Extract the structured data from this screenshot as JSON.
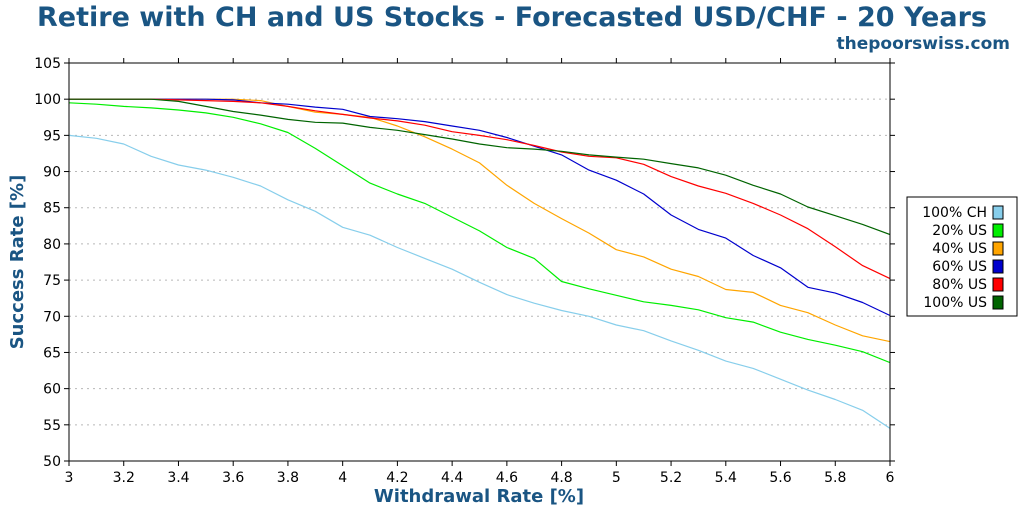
{
  "chart_data": {
    "type": "line",
    "title": "Retire with CH and US Stocks - Forecasted USD/CHF - 20 Years",
    "source": "thepoorswiss.com",
    "xlabel": "Withdrawal Rate [%]",
    "ylabel": "Success Rate [%]",
    "xlim": [
      3,
      6
    ],
    "ylim": [
      50,
      105
    ],
    "xticks": [
      "3",
      "3.2",
      "3.4",
      "3.6",
      "3.8",
      "4",
      "4.2",
      "4.4",
      "4.6",
      "4.8",
      "5",
      "5.2",
      "5.4",
      "5.6",
      "5.8",
      "6"
    ],
    "yticks": [
      "50",
      "55",
      "60",
      "65",
      "70",
      "75",
      "80",
      "85",
      "90",
      "95",
      "100",
      "105"
    ],
    "grid": true,
    "legend_position": "right",
    "x": [
      3.0,
      3.1,
      3.2,
      3.3,
      3.4,
      3.5,
      3.6,
      3.7,
      3.8,
      3.9,
      4.0,
      4.1,
      4.2,
      4.3,
      4.4,
      4.5,
      4.6,
      4.7,
      4.8,
      4.9,
      5.0,
      5.1,
      5.2,
      5.3,
      5.4,
      5.5,
      5.6,
      5.7,
      5.8,
      5.9,
      6.0
    ],
    "series": [
      {
        "name": "100% CH",
        "color": "#87ceeb",
        "values": [
          95.0,
          94.6,
          93.8,
          92.1,
          90.9,
          90.2,
          89.2,
          88.0,
          86.1,
          84.5,
          82.3,
          81.2,
          79.5,
          78.0,
          76.5,
          74.7,
          73.0,
          71.8,
          70.8,
          70.0,
          68.8,
          68.0,
          66.6,
          65.3,
          63.8,
          62.8,
          61.3,
          59.8,
          58.5,
          57.0,
          54.5
        ]
      },
      {
        "name": "20% US",
        "color": "#00ee00",
        "values": [
          99.5,
          99.3,
          99.0,
          98.8,
          98.5,
          98.1,
          97.5,
          96.6,
          95.4,
          93.2,
          90.8,
          88.4,
          86.9,
          85.6,
          83.7,
          81.8,
          79.5,
          78.0,
          74.8,
          73.8,
          72.9,
          72.0,
          71.5,
          70.9,
          69.8,
          69.2,
          67.8,
          66.8,
          66.0,
          65.1,
          63.6
        ]
      },
      {
        "name": "40% US",
        "color": "#ffa500",
        "values": [
          100.0,
          100.0,
          100.0,
          100.0,
          100.0,
          100.0,
          100.0,
          99.8,
          99.0,
          98.2,
          97.9,
          97.5,
          96.3,
          94.8,
          93.1,
          91.2,
          88.1,
          85.6,
          83.5,
          81.5,
          79.2,
          78.2,
          76.5,
          75.5,
          73.7,
          73.3,
          71.5,
          70.5,
          68.8,
          67.3,
          66.5
        ]
      },
      {
        "name": "60% US",
        "color": "#0000cd",
        "values": [
          100.0,
          100.0,
          100.0,
          100.0,
          100.0,
          100.0,
          99.9,
          99.5,
          99.3,
          98.9,
          98.6,
          97.6,
          97.3,
          96.9,
          96.3,
          95.7,
          94.7,
          93.5,
          92.3,
          90.2,
          88.8,
          86.9,
          84.0,
          82.0,
          80.8,
          78.4,
          76.7,
          74.0,
          73.2,
          71.9,
          70.1
        ]
      },
      {
        "name": "80% US",
        "color": "#ff0000",
        "values": [
          100.0,
          100.0,
          100.0,
          100.0,
          99.9,
          99.8,
          99.7,
          99.5,
          99.0,
          98.4,
          97.9,
          97.4,
          97.0,
          96.4,
          95.5,
          95.0,
          94.4,
          93.6,
          92.7,
          92.1,
          91.9,
          91.0,
          89.3,
          88.0,
          87.0,
          85.6,
          84.0,
          82.1,
          79.6,
          77.0,
          75.2
        ]
      },
      {
        "name": "100% US",
        "color": "#006400",
        "values": [
          100.0,
          100.0,
          100.0,
          100.0,
          99.7,
          99.0,
          98.3,
          97.8,
          97.2,
          96.8,
          96.7,
          96.1,
          95.7,
          95.1,
          94.5,
          93.8,
          93.3,
          93.1,
          92.8,
          92.3,
          92.0,
          91.7,
          91.1,
          90.5,
          89.5,
          88.1,
          86.9,
          85.1,
          83.9,
          82.7,
          81.3
        ]
      }
    ]
  }
}
